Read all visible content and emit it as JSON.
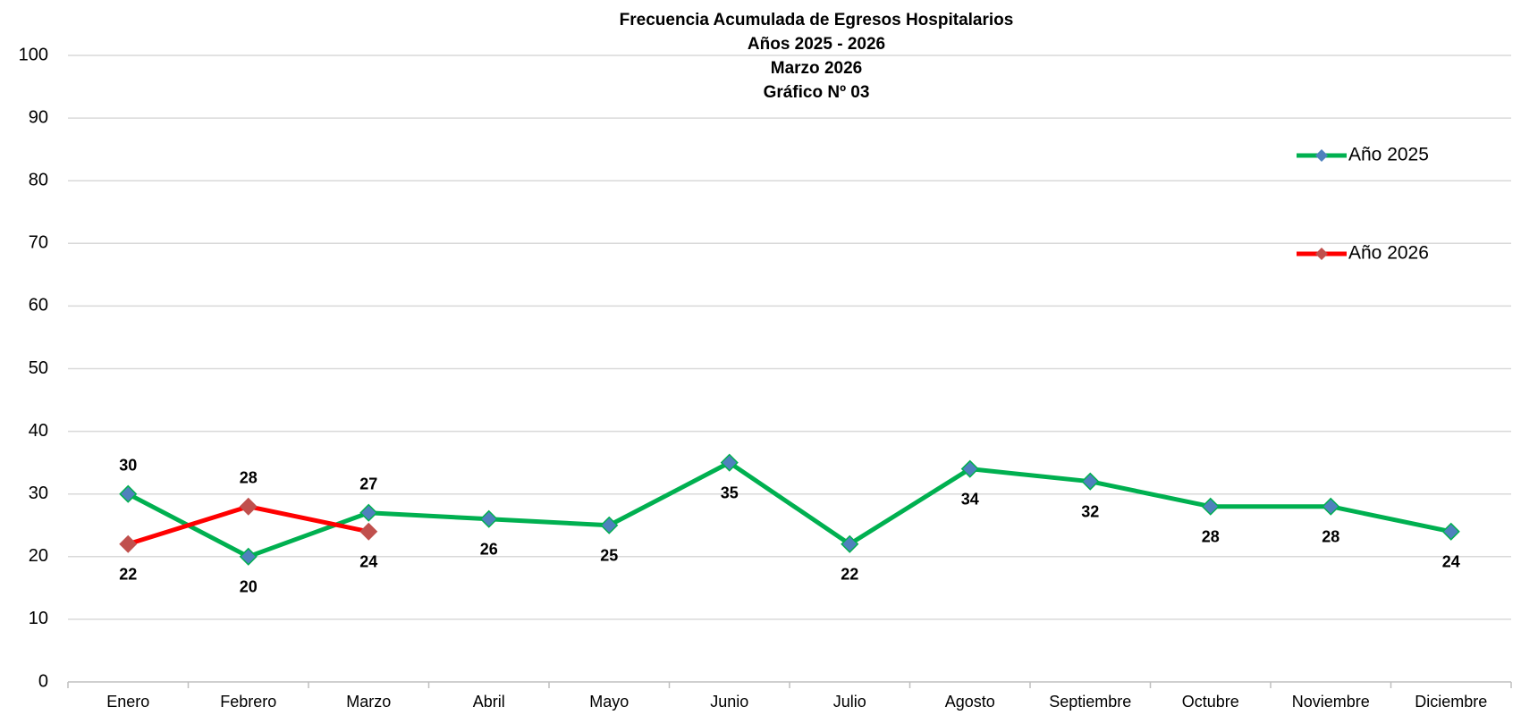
{
  "chart_data": {
    "type": "line",
    "title": "Frecuencia Acumulada de Egresos Hospitalarios",
    "subtitle": [
      "Años 2025 - 2026",
      "Marzo 2026",
      "Gráfico Nº 03"
    ],
    "categories": [
      "Enero",
      "Febrero",
      "Marzo",
      "Abril",
      "Mayo",
      "Junio",
      "Julio",
      "Agosto",
      "Septiembre",
      "Octubre",
      "Noviembre",
      "Diciembre"
    ],
    "series": [
      {
        "name": "Año 2025",
        "color": "#00b050",
        "marker_color": "#4f81bd",
        "values": [
          30,
          20,
          27,
          26,
          25,
          35,
          22,
          34,
          32,
          28,
          28,
          24
        ]
      },
      {
        "name": "Año 2026",
        "color": "#ff0000",
        "marker_color": "#c0504d",
        "values": [
          22,
          28,
          24,
          null,
          null,
          null,
          null,
          null,
          null,
          null,
          null,
          null
        ]
      }
    ],
    "ylim": [
      0,
      100
    ],
    "yticks": [
      0,
      10,
      20,
      30,
      40,
      50,
      60,
      70,
      80,
      90,
      100
    ],
    "grid": true,
    "legend": "right"
  }
}
